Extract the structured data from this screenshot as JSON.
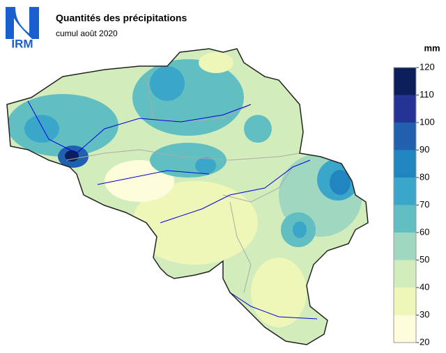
{
  "logo": "IRM",
  "title": "Quantités des précipitations",
  "subtitle": "cumul août 2020",
  "legend": {
    "unit": "mm",
    "ticks": [
      20,
      30,
      40,
      50,
      60,
      70,
      80,
      90,
      100,
      110,
      120
    ],
    "colors": [
      "#fdfddb",
      "#eef7b8",
      "#d2ecbc",
      "#9fd7c0",
      "#61bfc1",
      "#3aa6c9",
      "#2186c0",
      "#2160ae",
      "#253494",
      "#0d1f5a"
    ]
  }
}
